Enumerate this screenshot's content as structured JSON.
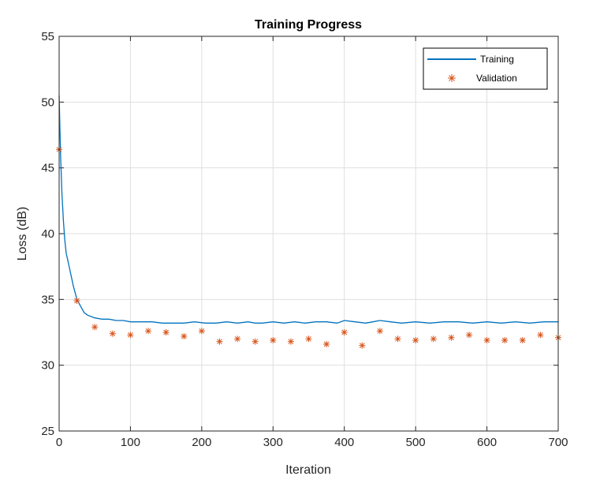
{
  "chart_data": {
    "type": "line",
    "title": "Training Progress",
    "xlabel": "Iteration",
    "ylabel": "Loss (dB)",
    "xlim": [
      0,
      700
    ],
    "ylim": [
      25,
      55
    ],
    "xticks": [
      0,
      100,
      200,
      300,
      400,
      500,
      600,
      700
    ],
    "yticks": [
      25,
      30,
      35,
      40,
      45,
      50,
      55
    ],
    "grid": true,
    "legend_position": "top-right",
    "series": [
      {
        "name": "Training",
        "kind": "line",
        "color": "#0072BD",
        "x": [
          0,
          2,
          4,
          6,
          8,
          10,
          12,
          14,
          16,
          18,
          20,
          25,
          30,
          35,
          40,
          50,
          60,
          70,
          80,
          90,
          100,
          115,
          130,
          145,
          160,
          175,
          190,
          205,
          220,
          235,
          250,
          265,
          275,
          285,
          300,
          315,
          330,
          345,
          360,
          375,
          390,
          400,
          415,
          430,
          440,
          450,
          465,
          480,
          500,
          520,
          540,
          560,
          580,
          600,
          620,
          640,
          660,
          680,
          700
        ],
        "y": [
          50.5,
          46.0,
          43.0,
          41.0,
          39.5,
          38.5,
          38.0,
          37.5,
          37.0,
          36.5,
          36.0,
          35.0,
          34.5,
          34.0,
          33.8,
          33.6,
          33.5,
          33.5,
          33.4,
          33.4,
          33.3,
          33.3,
          33.3,
          33.2,
          33.2,
          33.2,
          33.3,
          33.2,
          33.2,
          33.3,
          33.2,
          33.3,
          33.2,
          33.2,
          33.3,
          33.2,
          33.3,
          33.2,
          33.3,
          33.3,
          33.2,
          33.4,
          33.3,
          33.2,
          33.3,
          33.4,
          33.3,
          33.2,
          33.3,
          33.2,
          33.3,
          33.3,
          33.2,
          33.3,
          33.2,
          33.3,
          33.2,
          33.3,
          33.3
        ]
      },
      {
        "name": "Validation",
        "kind": "markers",
        "marker": "asterisk",
        "color": "#D95319",
        "x": [
          0,
          25,
          50,
          75,
          100,
          125,
          150,
          175,
          200,
          225,
          250,
          275,
          300,
          325,
          350,
          375,
          400,
          425,
          450,
          475,
          500,
          525,
          550,
          575,
          600,
          625,
          650,
          675,
          700
        ],
        "y": [
          46.4,
          34.9,
          32.9,
          32.4,
          32.3,
          32.6,
          32.5,
          32.2,
          32.6,
          31.8,
          32.0,
          31.8,
          31.9,
          31.8,
          32.0,
          31.6,
          32.5,
          31.5,
          32.6,
          32.0,
          31.9,
          32.0,
          32.1,
          32.3,
          31.9,
          31.9,
          31.9,
          32.3,
          32.1
        ]
      }
    ]
  }
}
